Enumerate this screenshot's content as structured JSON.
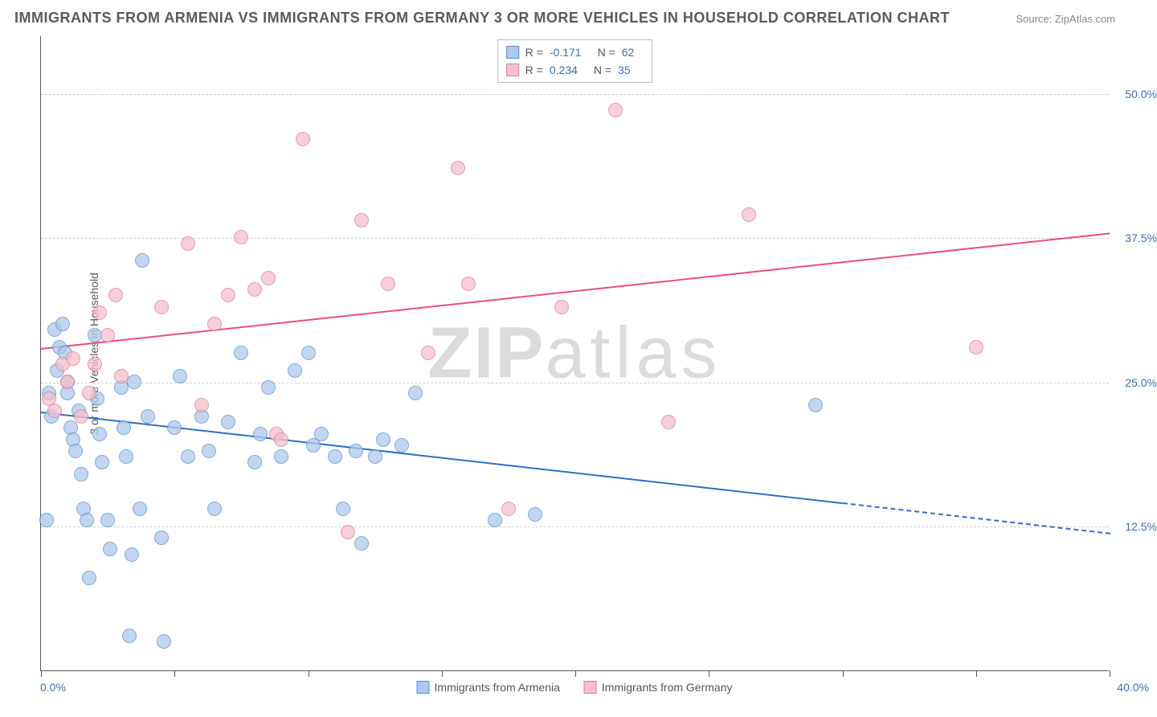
{
  "title": "IMMIGRANTS FROM ARMENIA VS IMMIGRANTS FROM GERMANY 3 OR MORE VEHICLES IN HOUSEHOLD CORRELATION CHART",
  "source": "Source: ZipAtlas.com",
  "ylabel": "3 or more Vehicles in Household",
  "watermark_bold": "ZIP",
  "watermark_light": "atlas",
  "chart": {
    "type": "scatter",
    "xlim": [
      0,
      40
    ],
    "ylim": [
      0,
      55
    ],
    "x_left_label": "0.0%",
    "x_right_label": "40.0%",
    "y_ticks": [
      12.5,
      25.0,
      37.5,
      50.0
    ],
    "y_tick_labels": [
      "12.5%",
      "25.0%",
      "37.5%",
      "50.0%"
    ],
    "x_tick_positions": [
      0,
      5,
      10,
      15,
      20,
      25,
      30,
      35,
      40
    ],
    "grid_color": "#cccccc",
    "background_color": "#ffffff",
    "series": [
      {
        "name": "Immigrants from Armenia",
        "fill": "#aec9ec",
        "stroke": "#5a8fce",
        "opacity": 0.75,
        "marker_size": 18,
        "R": "-0.171",
        "N": "62",
        "trend": {
          "color": "#2e6fc0",
          "width": 2,
          "y_at_x0": 22.5,
          "y_at_x40": 12.0,
          "solid_until_x": 30
        },
        "points": [
          [
            0.2,
            13.0
          ],
          [
            0.3,
            24.0
          ],
          [
            0.4,
            22.0
          ],
          [
            0.5,
            29.5
          ],
          [
            0.6,
            26.0
          ],
          [
            0.7,
            28.0
          ],
          [
            0.8,
            30.0
          ],
          [
            0.9,
            27.5
          ],
          [
            1.0,
            25.0
          ],
          [
            1.0,
            24.0
          ],
          [
            1.1,
            21.0
          ],
          [
            1.2,
            20.0
          ],
          [
            1.3,
            19.0
          ],
          [
            1.4,
            22.5
          ],
          [
            1.5,
            17.0
          ],
          [
            1.6,
            14.0
          ],
          [
            1.7,
            13.0
          ],
          [
            1.8,
            8.0
          ],
          [
            2.0,
            29.0
          ],
          [
            2.1,
            23.5
          ],
          [
            2.2,
            20.5
          ],
          [
            2.3,
            18.0
          ],
          [
            2.5,
            13.0
          ],
          [
            2.6,
            10.5
          ],
          [
            3.0,
            24.5
          ],
          [
            3.1,
            21.0
          ],
          [
            3.2,
            18.5
          ],
          [
            3.3,
            3.0
          ],
          [
            3.4,
            10.0
          ],
          [
            3.5,
            25.0
          ],
          [
            3.7,
            14.0
          ],
          [
            3.8,
            35.5
          ],
          [
            4.0,
            22.0
          ],
          [
            4.5,
            11.5
          ],
          [
            4.6,
            2.5
          ],
          [
            5.0,
            21.0
          ],
          [
            5.2,
            25.5
          ],
          [
            5.5,
            18.5
          ],
          [
            6.0,
            22.0
          ],
          [
            6.3,
            19.0
          ],
          [
            6.5,
            14.0
          ],
          [
            7.0,
            21.5
          ],
          [
            7.5,
            27.5
          ],
          [
            8.0,
            18.0
          ],
          [
            8.2,
            20.5
          ],
          [
            8.5,
            24.5
          ],
          [
            9.0,
            18.5
          ],
          [
            9.5,
            26.0
          ],
          [
            10.0,
            27.5
          ],
          [
            10.2,
            19.5
          ],
          [
            10.5,
            20.5
          ],
          [
            11.0,
            18.5
          ],
          [
            11.3,
            14.0
          ],
          [
            11.8,
            19.0
          ],
          [
            12.0,
            11.0
          ],
          [
            12.5,
            18.5
          ],
          [
            12.8,
            20.0
          ],
          [
            13.5,
            19.5
          ],
          [
            14.0,
            24.0
          ],
          [
            17.0,
            13.0
          ],
          [
            18.5,
            13.5
          ],
          [
            29.0,
            23.0
          ]
        ]
      },
      {
        "name": "Immigrants from Germany",
        "fill": "#f4c0cd",
        "stroke": "#e07a9a",
        "opacity": 0.75,
        "marker_size": 18,
        "R": "0.234",
        "N": "35",
        "trend": {
          "color": "#e84f7a",
          "width": 2,
          "y_at_x0": 28.0,
          "y_at_x40": 38.0,
          "solid_until_x": 40
        },
        "points": [
          [
            0.3,
            23.5
          ],
          [
            0.5,
            22.5
          ],
          [
            0.8,
            26.5
          ],
          [
            1.0,
            25.0
          ],
          [
            1.2,
            27.0
          ],
          [
            1.5,
            22.0
          ],
          [
            1.8,
            24.0
          ],
          [
            2.0,
            26.5
          ],
          [
            2.2,
            31.0
          ],
          [
            2.5,
            29.0
          ],
          [
            2.8,
            32.5
          ],
          [
            3.0,
            25.5
          ],
          [
            4.5,
            31.5
          ],
          [
            5.5,
            37.0
          ],
          [
            6.0,
            23.0
          ],
          [
            6.5,
            30.0
          ],
          [
            7.0,
            32.5
          ],
          [
            7.5,
            37.5
          ],
          [
            8.0,
            33.0
          ],
          [
            8.5,
            34.0
          ],
          [
            8.8,
            20.5
          ],
          [
            9.0,
            20.0
          ],
          [
            9.8,
            46.0
          ],
          [
            11.5,
            12.0
          ],
          [
            12.0,
            39.0
          ],
          [
            13.0,
            33.5
          ],
          [
            14.5,
            27.5
          ],
          [
            15.6,
            43.5
          ],
          [
            16.0,
            33.5
          ],
          [
            17.5,
            14.0
          ],
          [
            19.5,
            31.5
          ],
          [
            21.5,
            48.5
          ],
          [
            23.5,
            21.5
          ],
          [
            26.5,
            39.5
          ],
          [
            35.0,
            28.0
          ]
        ]
      }
    ],
    "legend_bottom": [
      {
        "label": "Immigrants from Armenia",
        "fill": "#aec9ec",
        "stroke": "#5a8fce"
      },
      {
        "label": "Immigrants from Germany",
        "fill": "#f4c0cd",
        "stroke": "#e07a9a"
      }
    ]
  }
}
